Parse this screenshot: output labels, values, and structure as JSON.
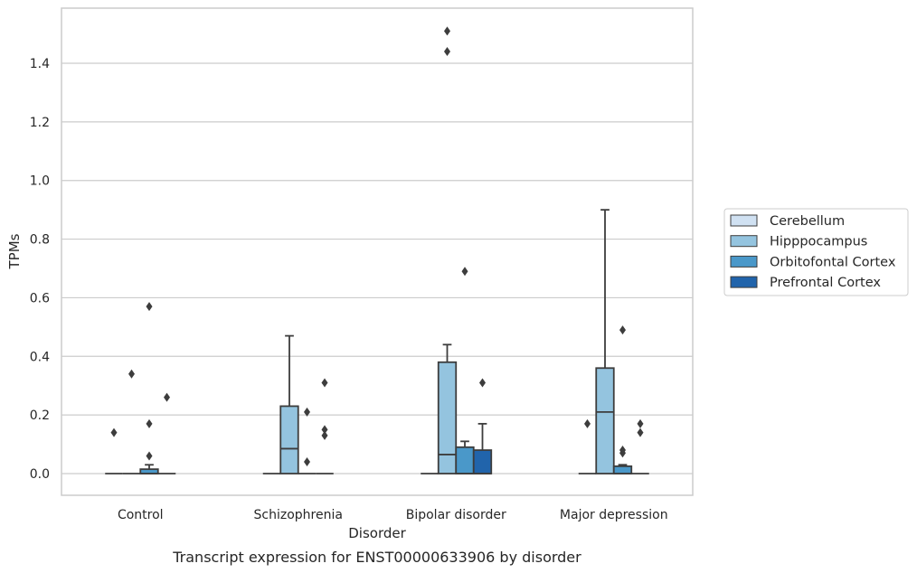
{
  "chart_data": {
    "type": "box",
    "title": "",
    "caption": "Transcript expression for ENST00000633906 by disorder",
    "xlabel": "Disorder",
    "ylabel": "TPMs",
    "ylim": [
      -0.075,
      1.6
    ],
    "yticks": [
      "0.0",
      "0.2",
      "0.4",
      "0.6",
      "0.8",
      "1.0",
      "1.2",
      "1.4"
    ],
    "grid": "horizontal",
    "legend_position": "right",
    "categories": [
      "Control",
      "Schizophrenia",
      "Bipolar disorder",
      "Major depression"
    ],
    "series": [
      {
        "name": "Cerebellum",
        "color": "#d0e1f2",
        "boxes": [
          {
            "q1": 0,
            "median": 0,
            "q3": 0,
            "whisker_low": 0,
            "whisker_high": 0,
            "outliers": [
              0.14
            ]
          },
          {
            "q1": 0,
            "median": 0,
            "q3": 0,
            "whisker_low": 0,
            "whisker_high": 0,
            "outliers": []
          },
          {
            "q1": 0,
            "median": 0,
            "q3": 0,
            "whisker_low": 0,
            "whisker_high": 0,
            "outliers": []
          },
          {
            "q1": 0,
            "median": 0,
            "q3": 0,
            "whisker_low": 0,
            "whisker_high": 0,
            "outliers": [
              0.17
            ]
          }
        ]
      },
      {
        "name": "Hipppocampus",
        "color": "#94c4df",
        "boxes": [
          {
            "q1": 0,
            "median": 0,
            "q3": 0,
            "whisker_low": 0,
            "whisker_high": 0,
            "outliers": [
              0.34
            ]
          },
          {
            "q1": 0,
            "median": 0.085,
            "q3": 0.23,
            "whisker_low": 0,
            "whisker_high": 0.47,
            "outliers": []
          },
          {
            "q1": 0,
            "median": 0.065,
            "q3": 0.38,
            "whisker_low": 0,
            "whisker_high": 0.44,
            "outliers": [
              1.51,
              1.44
            ]
          },
          {
            "q1": 0,
            "median": 0.21,
            "q3": 0.36,
            "whisker_low": 0,
            "whisker_high": 0.9,
            "outliers": []
          }
        ]
      },
      {
        "name": "Orbitofontal Cortex",
        "color": "#4a98c9",
        "boxes": [
          {
            "q1": 0,
            "median": 0,
            "q3": 0.015,
            "whisker_low": 0,
            "whisker_high": 0.03,
            "outliers": [
              0.57,
              0.17,
              0.06
            ]
          },
          {
            "q1": 0,
            "median": 0,
            "q3": 0,
            "whisker_low": 0,
            "whisker_high": 0,
            "outliers": [
              0.21,
              0.04
            ]
          },
          {
            "q1": 0,
            "median": 0,
            "q3": 0.09,
            "whisker_low": 0,
            "whisker_high": 0.11,
            "outliers": [
              0.69
            ]
          },
          {
            "q1": 0,
            "median": 0,
            "q3": 0.025,
            "whisker_low": 0,
            "whisker_high": 0.03,
            "outliers": [
              0.49,
              0.08,
              0.07
            ]
          }
        ]
      },
      {
        "name": "Prefrontal Cortex",
        "color": "#2164ab",
        "boxes": [
          {
            "q1": 0,
            "median": 0,
            "q3": 0,
            "whisker_low": 0,
            "whisker_high": 0,
            "outliers": [
              0.26
            ]
          },
          {
            "q1": 0,
            "median": 0,
            "q3": 0,
            "whisker_low": 0,
            "whisker_high": 0,
            "outliers": [
              0.31,
              0.15,
              0.13
            ]
          },
          {
            "q1": 0,
            "median": 0,
            "q3": 0.08,
            "whisker_low": 0,
            "whisker_high": 0.17,
            "outliers": [
              0.31
            ]
          },
          {
            "q1": 0,
            "median": 0,
            "q3": 0,
            "whisker_low": 0,
            "whisker_high": 0,
            "outliers": [
              0.17,
              0.14
            ]
          }
        ]
      }
    ]
  }
}
